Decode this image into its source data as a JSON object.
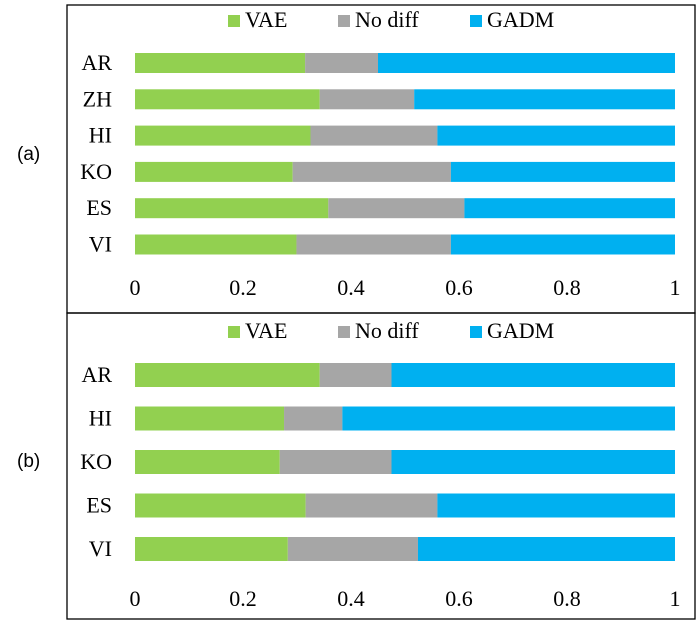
{
  "chart_data": [
    {
      "type": "bar",
      "orientation": "horizontal",
      "stacked": true,
      "panel_label": "(a)",
      "categories": [
        "AR",
        "ZH",
        "HI",
        "KO",
        "ES",
        "VI"
      ],
      "series": [
        {
          "name": "VAE",
          "values": [
            0.315,
            0.342,
            0.325,
            0.292,
            0.358,
            0.299
          ]
        },
        {
          "name": "No diff",
          "values": [
            0.135,
            0.175,
            0.235,
            0.293,
            0.252,
            0.286
          ]
        },
        {
          "name": "GADM",
          "values": [
            0.55,
            0.483,
            0.44,
            0.415,
            0.39,
            0.415
          ]
        }
      ],
      "xlim": [
        0,
        1
      ],
      "xticks": [
        "0",
        "0.2",
        "0.4",
        "0.6",
        "0.8",
        "1"
      ],
      "legend_position": "top-center",
      "title": "",
      "xlabel": "",
      "ylabel": ""
    },
    {
      "type": "bar",
      "orientation": "horizontal",
      "stacked": true,
      "panel_label": "(b)",
      "categories": [
        "AR",
        "HI",
        "KO",
        "ES",
        "VI"
      ],
      "series": [
        {
          "name": "VAE",
          "values": [
            0.342,
            0.276,
            0.268,
            0.316,
            0.283
          ]
        },
        {
          "name": "No diff",
          "values": [
            0.133,
            0.108,
            0.207,
            0.244,
            0.241
          ]
        },
        {
          "name": "GADM",
          "values": [
            0.525,
            0.616,
            0.525,
            0.44,
            0.476
          ]
        }
      ],
      "xlim": [
        0,
        1
      ],
      "xticks": [
        "0",
        "0.2",
        "0.4",
        "0.6",
        "0.8",
        "1"
      ],
      "legend_position": "top-center",
      "title": "",
      "xlabel": "",
      "ylabel": ""
    }
  ],
  "colors": {
    "VAE": "#92d050",
    "No diff": "#a6a6a6",
    "GADM": "#00b0f0",
    "border": "#000000",
    "text": "#000000"
  }
}
